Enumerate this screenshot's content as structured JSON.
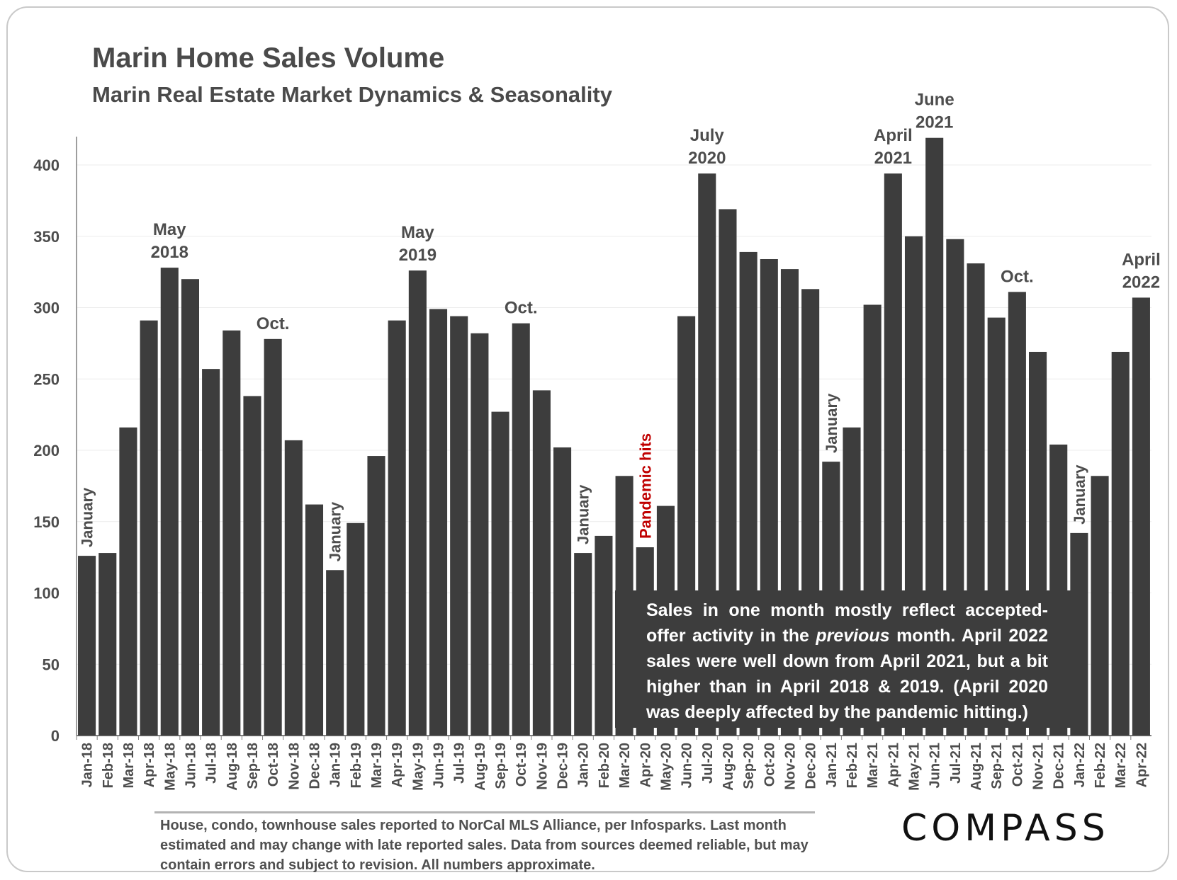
{
  "title": "Marin Home Sales Volume",
  "subtitle": "Marin Real Estate Market Dynamics & Seasonality",
  "callout": {
    "line_pre": "Sales in one month mostly reflect accepted-offer activity in the ",
    "emphasis": "previous",
    "line_post": " month. April 2022 sales were well down from April 2021, but a bit higher than in April 2018 & 2019. (April 2020 was deeply affected by the pandemic hitting.)"
  },
  "footnote": "House, condo, townhouse sales reported to NorCal MLS Alliance, per Infosparks. Last month estimated and may change with late reported sales. Data from sources deemed reliable, but may contain errors and subject to revision. All numbers approximate.",
  "brand": "COMPASS",
  "colors": {
    "bar": "#3d3d3d",
    "annotation": "#4d4d4d",
    "pandemic": "#c00000",
    "axis": "#7f7f7f",
    "gridline": "#ececec"
  },
  "chart_data": {
    "type": "bar",
    "ylim": [
      0,
      420
    ],
    "yticks": [
      0,
      50,
      100,
      150,
      200,
      250,
      300,
      350,
      400
    ],
    "grid": true,
    "categories": [
      "Jan-18",
      "Feb-18",
      "Mar-18",
      "Apr-18",
      "May-18",
      "Jun-18",
      "Jul-18",
      "Aug-18",
      "Sep-18",
      "Oct-18",
      "Nov-18",
      "Dec-18",
      "Jan-19",
      "Feb-19",
      "Mar-19",
      "Apr-19",
      "May-19",
      "Jun-19",
      "Jul-19",
      "Aug-19",
      "Sep-19",
      "Oct-19",
      "Nov-19",
      "Dec-19",
      "Jan-20",
      "Feb-20",
      "Mar-20",
      "Apr-20",
      "May-20",
      "Jun-20",
      "Jul-20",
      "Aug-20",
      "Sep-20",
      "Oct-20",
      "Nov-20",
      "Dec-20",
      "Jan-21",
      "Feb-21",
      "Mar-21",
      "Apr-21",
      "May-21",
      "Jun-21",
      "Jul-21",
      "Aug-21",
      "Sep-21",
      "Oct-21",
      "Nov-21",
      "Dec-21",
      "Jan-22",
      "Feb-22",
      "Mar-22",
      "Apr-22"
    ],
    "values": [
      126,
      128,
      216,
      291,
      328,
      320,
      257,
      284,
      238,
      278,
      207,
      162,
      116,
      149,
      196,
      291,
      326,
      299,
      294,
      282,
      227,
      289,
      242,
      202,
      128,
      140,
      182,
      132,
      161,
      294,
      394,
      369,
      339,
      334,
      327,
      313,
      192,
      216,
      302,
      394,
      350,
      419,
      348,
      331,
      293,
      311,
      269,
      204,
      142,
      182,
      269,
      307
    ],
    "annotations": [
      {
        "index": 0,
        "text": "January",
        "style": "vertical"
      },
      {
        "index": 4,
        "text": [
          "May",
          "2018"
        ],
        "style": "above"
      },
      {
        "index": 9,
        "text": [
          "Oct."
        ],
        "style": "above"
      },
      {
        "index": 12,
        "text": "January",
        "style": "vertical"
      },
      {
        "index": 16,
        "text": [
          "May",
          "2019"
        ],
        "style": "above"
      },
      {
        "index": 21,
        "text": [
          "Oct."
        ],
        "style": "above"
      },
      {
        "index": 24,
        "text": "January",
        "style": "vertical"
      },
      {
        "index": 27,
        "text": "Pandemic hits",
        "style": "vertical",
        "highlight": true
      },
      {
        "index": 30,
        "text": [
          "July",
          "2020"
        ],
        "style": "above"
      },
      {
        "index": 36,
        "text": "January",
        "style": "vertical"
      },
      {
        "index": 39,
        "text": [
          "April",
          "2021"
        ],
        "style": "above"
      },
      {
        "index": 41,
        "text": [
          "June",
          "2021"
        ],
        "style": "above"
      },
      {
        "index": 45,
        "text": [
          "Oct."
        ],
        "style": "above"
      },
      {
        "index": 48,
        "text": "January",
        "style": "vertical"
      },
      {
        "index": 51,
        "text": [
          "April",
          "2022"
        ],
        "style": "above"
      }
    ]
  }
}
